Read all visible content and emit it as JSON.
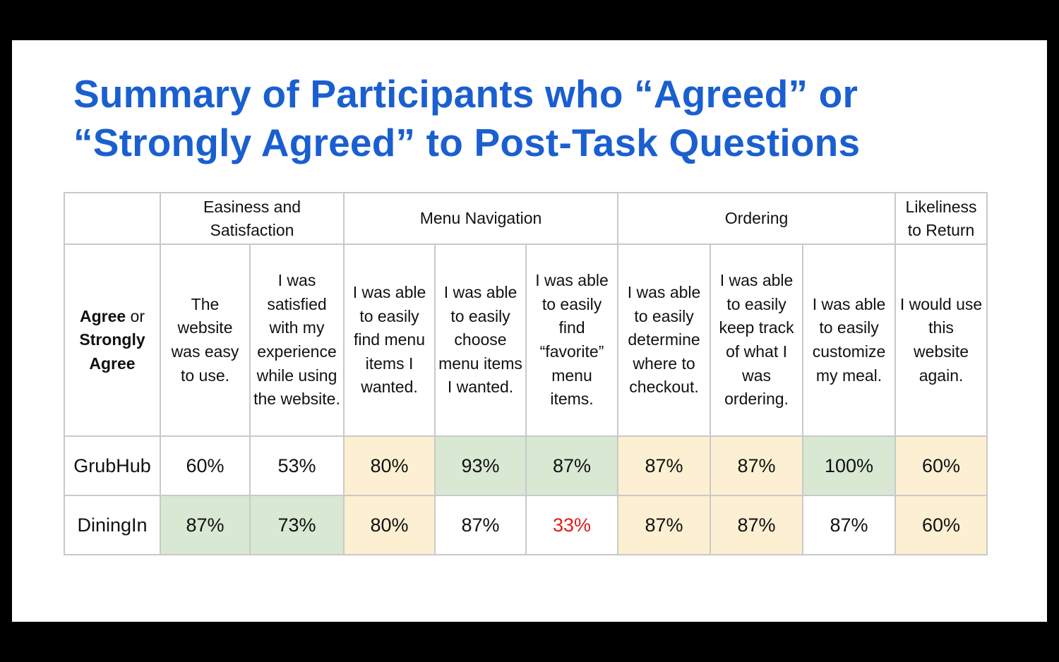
{
  "title": {
    "line1": "Summary of Participants who “Agreed” or",
    "line2": "“Strongly Agreed” to Post-Task Questions"
  },
  "colors": {
    "title_blue": "#1a5fd0",
    "highlight_yellow": "#fdf0d2",
    "highlight_green": "#d8e8d3",
    "alert_red": "#e21b1b",
    "grid_gray": "#c9c9c9"
  },
  "table": {
    "corner": {
      "part1_bold": "Agree",
      "part1_rest": " or",
      "part2_bold": "Strongly",
      "part3_bold": "Agree"
    },
    "groups": [
      {
        "label_line1": "Easiness and",
        "label_line2": "Satisfaction"
      },
      {
        "label_line1": "Menu Navigation",
        "label_line2": ""
      },
      {
        "label_line1": "Ordering",
        "label_line2": ""
      },
      {
        "label_line1": "Likeliness",
        "label_line2": "to Return"
      }
    ],
    "questions": [
      "The website was easy to use.",
      "I was satisfied with my experience while using the website.",
      "I was able to easily find menu items I wanted.",
      "I was able to easily choose menu items I wanted.",
      "I was able to easily find “favorite” menu items.",
      "I was able to easily determine where to checkout.",
      "I was able to easily keep track of what I was ordering.",
      "I was able to easily customize my meal.",
      "I would use this website again."
    ],
    "rows": [
      {
        "name": "GrubHub",
        "values": [
          "60%",
          "53%",
          "80%",
          "93%",
          "87%",
          "87%",
          "87%",
          "100%",
          "60%"
        ],
        "highlights": [
          "white",
          "white",
          "yellow",
          "green",
          "green",
          "yellow",
          "yellow",
          "green",
          "yellow"
        ]
      },
      {
        "name": "DiningIn",
        "values": [
          "87%",
          "73%",
          "80%",
          "87%",
          "33%",
          "87%",
          "87%",
          "87%",
          "60%"
        ],
        "highlights": [
          "green",
          "green",
          "yellow",
          "white",
          "white",
          "yellow",
          "yellow",
          "white",
          "yellow"
        ],
        "alert_cells": [
          4
        ]
      }
    ]
  }
}
